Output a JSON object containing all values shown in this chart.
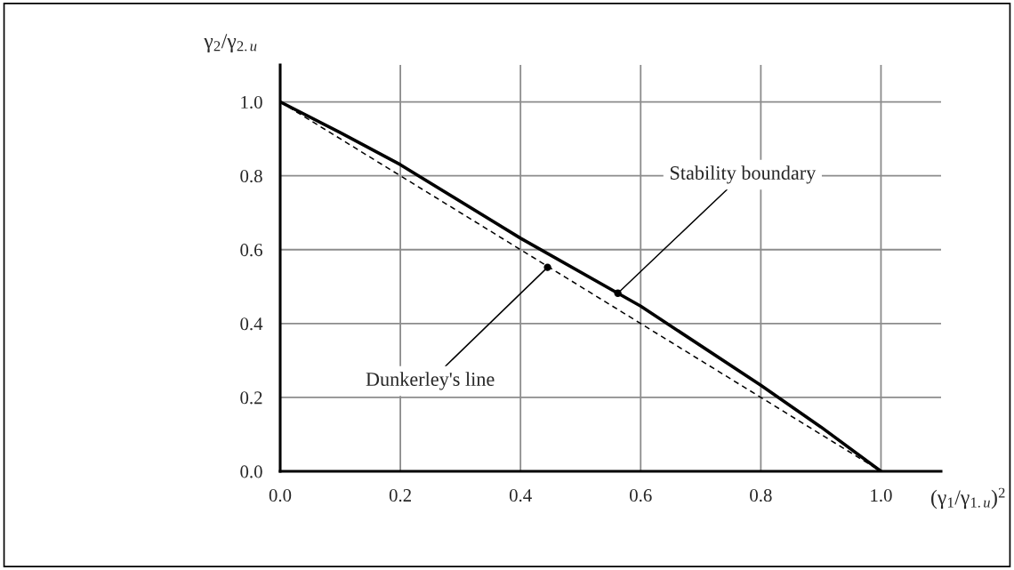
{
  "chart_data": {
    "type": "line",
    "xlabel": "(γ$_{1}$/γ$_{1.и}$)$^{2}$",
    "ylabel": "γ$_{2}$/γ$_{2.и}$",
    "series": [
      {
        "color": "#000000",
        "line_style": "solid",
        "x": [
          0,
          0.1,
          0.2,
          0.4,
          0.6,
          0.8,
          0.9,
          1.0
        ],
        "values": [
          1.0,
          0.917,
          0.83,
          0.631,
          0.447,
          0.233,
          0.12,
          0.0
        ]
      },
      {
        "color": "#000000",
        "line_style": "dashed",
        "x": [
          0,
          1.0
        ],
        "values": [
          1.0,
          0.0
        ]
      }
    ],
    "annotations": [
      {
        "text": "Stability boundary",
        "x": 0.562,
        "y": 0.482
      },
      {
        "text": "Dunkerley's line",
        "x": 0.445,
        "y": 0.552
      }
    ],
    "xlim": [
      0,
      1.1
    ],
    "ylim": [
      0,
      1.1
    ],
    "xticks": [
      {
        "value": 0,
        "label": "0.0"
      },
      0.2,
      0.4,
      0.6,
      0.8,
      {
        "value": 1.0,
        "label": "1.0"
      }
    ],
    "yticks": [
      {
        "value": 0,
        "label": "0.0"
      },
      0.2,
      0.4,
      0.6,
      0.8,
      {
        "value": 1.0,
        "label": "1.0"
      }
    ],
    "grid": true,
    "marker": "none",
    "legend": false
  }
}
